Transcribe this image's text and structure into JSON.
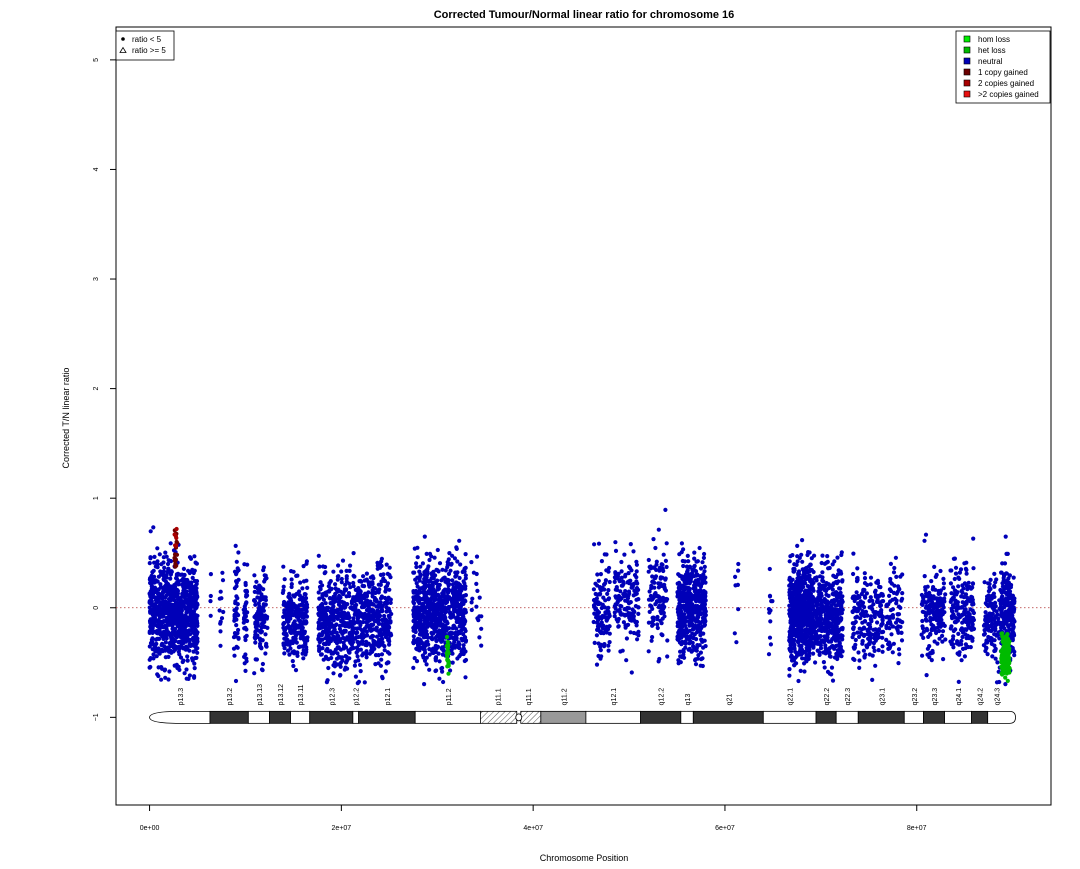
{
  "chart_data": {
    "type": "scatter",
    "title": "Corrected Tumour/Normal linear ratio for chromosome  16",
    "xlabel": "Chromosome Position",
    "ylabel": "Corrected T/N linear ratio",
    "xlim": [
      -3500000,
      94000000
    ],
    "ylim": [
      -1.8,
      5.3
    ],
    "x_ticks": [
      0,
      20000000,
      40000000,
      60000000,
      80000000
    ],
    "x_tick_labels": [
      "0e+00",
      "2e+07",
      "4e+07",
      "6e+07",
      "8e+07"
    ],
    "y_ticks": [
      -1,
      0,
      1,
      2,
      3,
      4,
      5
    ],
    "y_tick_labels": [
      "−1",
      "0",
      "1",
      "2",
      "3",
      "4",
      "5"
    ],
    "reference_line": 0,
    "shape_legend": {
      "placement": "top-left",
      "items": [
        {
          "label": "ratio < 5",
          "symbol": "filled-circle"
        },
        {
          "label": "ratio >= 5",
          "symbol": "open-triangle"
        }
      ]
    },
    "status_legend": {
      "placement": "top-right",
      "items": [
        {
          "label": "hom loss",
          "color": "#00ee00"
        },
        {
          "label": "het loss",
          "color": "#00bb00"
        },
        {
          "label": "neutral",
          "color": "#0000b8"
        },
        {
          "label": "1 copy gained",
          "color": "#6b0000"
        },
        {
          "label": "2 copies gained",
          "color": "#a80000"
        },
        {
          "label": ">2 copies gained",
          "color": "#e81010"
        }
      ]
    },
    "series": [
      {
        "name": "neutral",
        "color": "#0000b8",
        "clusters": [
          {
            "x": [
              0,
              5000000
            ],
            "y": [
              -0.05,
              0.23
            ],
            "n": 900
          },
          {
            "x": [
              6300000,
              6700000
            ],
            "y": [
              -0.05,
              0.2
            ],
            "n": 4
          },
          {
            "x": [
              7300000,
              7700000
            ],
            "y": [
              -0.05,
              0.2
            ],
            "n": 12
          },
          {
            "x": [
              8800000,
              9300000
            ],
            "y": [
              -0.05,
              0.22
            ],
            "n": 45
          },
          {
            "x": [
              9800000,
              10200000
            ],
            "y": [
              -0.05,
              0.22
            ],
            "n": 40
          },
          {
            "x": [
              10900000,
              12300000
            ],
            "y": [
              -0.08,
              0.2
            ],
            "n": 120
          },
          {
            "x": [
              13900000,
              16500000
            ],
            "y": [
              -0.1,
              0.2
            ],
            "n": 260
          },
          {
            "x": [
              17600000,
              19000000
            ],
            "y": [
              -0.12,
              0.2
            ],
            "n": 170
          },
          {
            "x": [
              19100000,
              22700000
            ],
            "y": [
              -0.12,
              0.22
            ],
            "n": 380
          },
          {
            "x": [
              22800000,
              25200000
            ],
            "y": [
              -0.1,
              0.22
            ],
            "n": 260
          },
          {
            "x": [
              27500000,
              31000000
            ],
            "y": [
              -0.05,
              0.22
            ],
            "n": 560
          },
          {
            "x": [
              31000000,
              33000000
            ],
            "y": [
              -0.02,
              0.22
            ],
            "n": 260
          },
          {
            "x": [
              33500000,
              34600000
            ],
            "y": [
              0.05,
              0.22
            ],
            "n": 18
          },
          {
            "x": [
              46300000,
              48000000
            ],
            "y": [
              -0.03,
              0.22
            ],
            "n": 110
          },
          {
            "x": [
              48500000,
              51000000
            ],
            "y": [
              0.05,
              0.22
            ],
            "n": 150
          },
          {
            "x": [
              52000000,
              54000000
            ],
            "y": [
              0.1,
              0.22
            ],
            "n": 120
          },
          {
            "x": [
              55000000,
              58000000
            ],
            "y": [
              0.0,
              0.22
            ],
            "n": 480
          },
          {
            "x": [
              61000000,
              61400000
            ],
            "y": [
              0.05,
              0.25
            ],
            "n": 8
          },
          {
            "x": [
              64500000,
              65000000
            ],
            "y": [
              0.0,
              0.2
            ],
            "n": 12
          },
          {
            "x": [
              66700000,
              69000000
            ],
            "y": [
              -0.05,
              0.22
            ],
            "n": 620
          },
          {
            "x": [
              69000000,
              72300000
            ],
            "y": [
              -0.07,
              0.22
            ],
            "n": 470
          },
          {
            "x": [
              73300000,
              76500000
            ],
            "y": [
              -0.1,
              0.2
            ],
            "n": 200
          },
          {
            "x": [
              76800000,
              78500000
            ],
            "y": [
              -0.05,
              0.18
            ],
            "n": 80
          },
          {
            "x": [
              80500000,
              83000000
            ],
            "y": [
              -0.05,
              0.2
            ],
            "n": 170
          },
          {
            "x": [
              83500000,
              86000000
            ],
            "y": [
              -0.03,
              0.2
            ],
            "n": 180
          },
          {
            "x": [
              87000000,
              88800000
            ],
            "y": [
              -0.1,
              0.2
            ],
            "n": 150
          },
          {
            "x": [
              88800000,
              90200000
            ],
            "y": [
              -0.05,
              0.22
            ],
            "n": 220
          }
        ]
      },
      {
        "name": "het loss",
        "color": "#00bb00",
        "clusters": [
          {
            "x": [
              31000000,
              31200000
            ],
            "y": [
              -0.42,
              0.08
            ],
            "n": 25
          },
          {
            "x": [
              88800000,
              89700000
            ],
            "y": [
              -0.45,
              0.08
            ],
            "n": 160
          }
        ]
      },
      {
        "name": "1 copy gained",
        "color": "#6b0000",
        "clusters": [
          {
            "x": [
              2600000,
              2900000
            ],
            "y": [
              0.5,
              0.14
            ],
            "n": 14
          }
        ]
      },
      {
        "name": "2 copies gained",
        "color": "#a80000",
        "clusters": [
          {
            "x": [
              2600000,
              2900000
            ],
            "y": [
              0.6,
              0.12
            ],
            "n": 6
          }
        ]
      }
    ],
    "ideogram": {
      "y": -1,
      "bands": [
        {
          "name": "p13.3",
          "start": 0,
          "end": 6300000,
          "stain": "gneg"
        },
        {
          "name": "p13.2",
          "start": 6300000,
          "end": 10300000,
          "stain": "gpos"
        },
        {
          "name": "p13.13",
          "start": 10300000,
          "end": 12500000,
          "stain": "gneg"
        },
        {
          "name": "p13.12",
          "start": 12500000,
          "end": 14700000,
          "stain": "gpos"
        },
        {
          "name": "p13.11",
          "start": 14700000,
          "end": 16700000,
          "stain": "gneg"
        },
        {
          "name": "p12.3",
          "start": 16700000,
          "end": 21200000,
          "stain": "gpos"
        },
        {
          "name": "p12.2",
          "start": 21200000,
          "end": 21800000,
          "stain": "gneg"
        },
        {
          "name": "p12.1",
          "start": 21800000,
          "end": 27700000,
          "stain": "gpos"
        },
        {
          "name": "p11.2",
          "start": 27700000,
          "end": 34500000,
          "stain": "gneg"
        },
        {
          "name": "p11.1",
          "start": 34500000,
          "end": 38100000,
          "stain": "stalk"
        },
        {
          "name": "q11.1",
          "start": 38100000,
          "end": 40800000,
          "stain": "stalk"
        },
        {
          "name": "q11.2",
          "start": 40800000,
          "end": 45500000,
          "stain": "gvar"
        },
        {
          "name": "q12.1",
          "start": 45500000,
          "end": 51200000,
          "stain": "gneg"
        },
        {
          "name": "q12.2",
          "start": 51200000,
          "end": 55400000,
          "stain": "gpos"
        },
        {
          "name": "q13",
          "start": 55400000,
          "end": 56700000,
          "stain": "gneg"
        },
        {
          "name": "q21",
          "start": 56700000,
          "end": 64000000,
          "stain": "gpos"
        },
        {
          "name": "q22.1",
          "start": 64000000,
          "end": 69500000,
          "stain": "gneg"
        },
        {
          "name": "q22.2",
          "start": 69500000,
          "end": 71600000,
          "stain": "gpos"
        },
        {
          "name": "q22.3",
          "start": 71600000,
          "end": 73900000,
          "stain": "gneg"
        },
        {
          "name": "q23.1",
          "start": 73900000,
          "end": 78700000,
          "stain": "gpos"
        },
        {
          "name": "q23.2",
          "start": 78700000,
          "end": 80700000,
          "stain": "gneg"
        },
        {
          "name": "q23.3",
          "start": 80700000,
          "end": 82900000,
          "stain": "gpos"
        },
        {
          "name": "q24.1",
          "start": 82900000,
          "end": 85700000,
          "stain": "gneg"
        },
        {
          "name": "q24.2",
          "start": 85700000,
          "end": 87400000,
          "stain": "gpos"
        },
        {
          "name": "q24.3",
          "start": 87400000,
          "end": 89200000,
          "stain": "gneg"
        }
      ],
      "end": 90300000,
      "centromere": 38500000
    }
  }
}
